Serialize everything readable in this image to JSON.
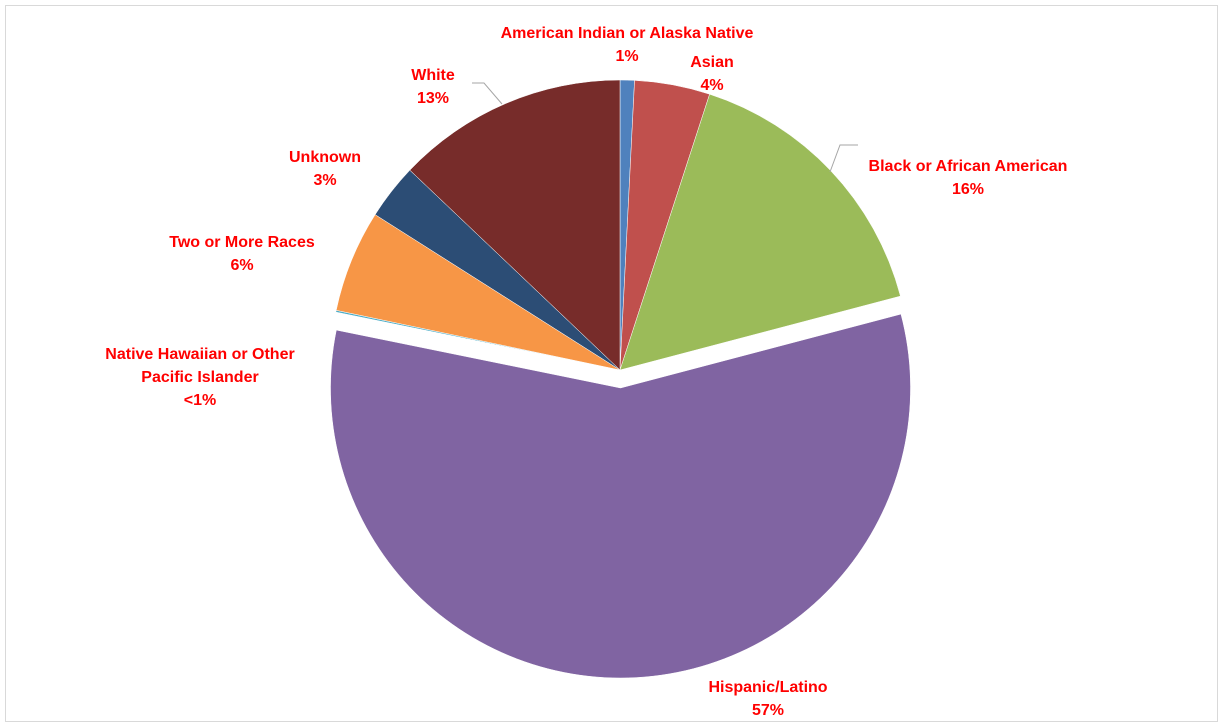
{
  "chart_data": {
    "type": "pie",
    "title": "",
    "start_angle_deg": 0,
    "direction": "clockwise",
    "exploded": [
      "Hispanic/Latino"
    ],
    "slices": [
      {
        "label": "American Indian or Alaska Native",
        "value": 0.8,
        "display": "1%",
        "color": "#4f81bd"
      },
      {
        "label": "Asian",
        "value": 4.2,
        "display": "4%",
        "color": "#c0504d"
      },
      {
        "label": "Black or African American",
        "value": 15.9,
        "display": "16%",
        "color": "#9bbb59"
      },
      {
        "label": "Hispanic/Latino",
        "value": 57.3,
        "display": "57%",
        "color": "#8064a2"
      },
      {
        "label": "Native Hawaiian or Other Pacific Islander",
        "value": 0.1,
        "display": "<1%",
        "color": "#4bacc6"
      },
      {
        "label": "Two or More Races",
        "value": 5.7,
        "display": "6%",
        "color": "#f79646"
      },
      {
        "label": "Unknown",
        "value": 3.1,
        "display": "3%",
        "color": "#2c4d75"
      },
      {
        "label": "White",
        "value": 12.9,
        "display": "13%",
        "color": "#772c2a"
      }
    ]
  }
}
